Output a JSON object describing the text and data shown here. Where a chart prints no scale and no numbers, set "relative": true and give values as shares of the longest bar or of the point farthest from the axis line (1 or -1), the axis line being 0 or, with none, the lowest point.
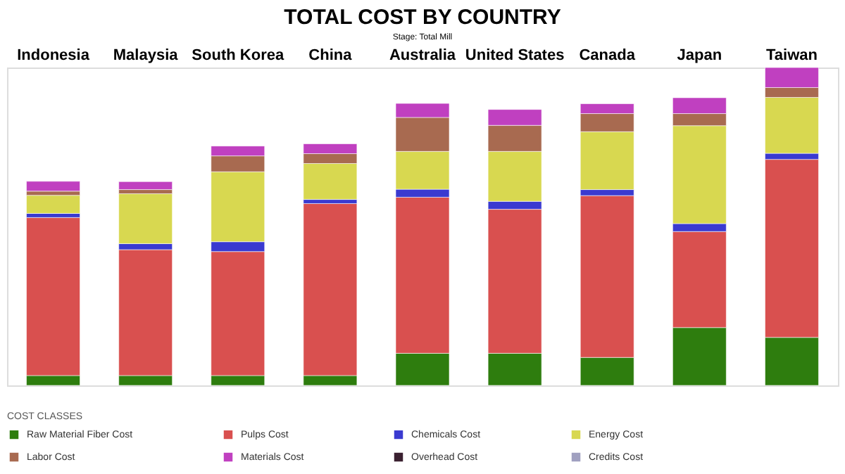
{
  "chart_data": {
    "type": "bar",
    "title": "TOTAL COST BY COUNTRY",
    "subtitle": "Stage: Total Mill",
    "legend_title": "COST CLASSES",
    "categories": [
      "Indonesia",
      "Malaysia",
      "South Korea",
      "China",
      "Australia",
      "United States",
      "Canada",
      "Japan",
      "Taiwan"
    ],
    "relative": true,
    "stacked": true,
    "legend": "bottom",
    "series": [
      {
        "name": "Raw Material Fiber Cost",
        "color": "#2e7d0e",
        "values": [
          0.031,
          0.031,
          0.031,
          0.031,
          0.101,
          0.101,
          0.088,
          0.182,
          0.151
        ]
      },
      {
        "name": "Pulps Cost",
        "color": "#d9504f",
        "values": [
          0.497,
          0.396,
          0.39,
          0.541,
          0.491,
          0.453,
          0.509,
          0.302,
          0.56
        ]
      },
      {
        "name": "Chemicals Cost",
        "color": "#3a3ad0",
        "values": [
          0.013,
          0.019,
          0.031,
          0.013,
          0.025,
          0.025,
          0.019,
          0.025,
          0.019
        ]
      },
      {
        "name": "Energy Cost",
        "color": "#d8d850",
        "values": [
          0.057,
          0.157,
          0.22,
          0.113,
          0.119,
          0.157,
          0.182,
          0.308,
          0.176
        ]
      },
      {
        "name": "Labor Cost",
        "color": "#a86a50",
        "values": [
          0.013,
          0.013,
          0.05,
          0.031,
          0.107,
          0.082,
          0.057,
          0.038,
          0.031
        ]
      },
      {
        "name": "Materials Cost",
        "color": "#c040c0",
        "values": [
          0.031,
          0.025,
          0.031,
          0.031,
          0.044,
          0.05,
          0.031,
          0.05,
          0.063
        ]
      },
      {
        "name": "Overhead Cost",
        "color": "#3a2030",
        "values": [
          null,
          null,
          null,
          null,
          null,
          null,
          null,
          null,
          null
        ]
      },
      {
        "name": "Credits Cost",
        "color": "#a0a0c0",
        "values": [
          null,
          null,
          null,
          null,
          null,
          null,
          null,
          null,
          null
        ]
      }
    ]
  }
}
